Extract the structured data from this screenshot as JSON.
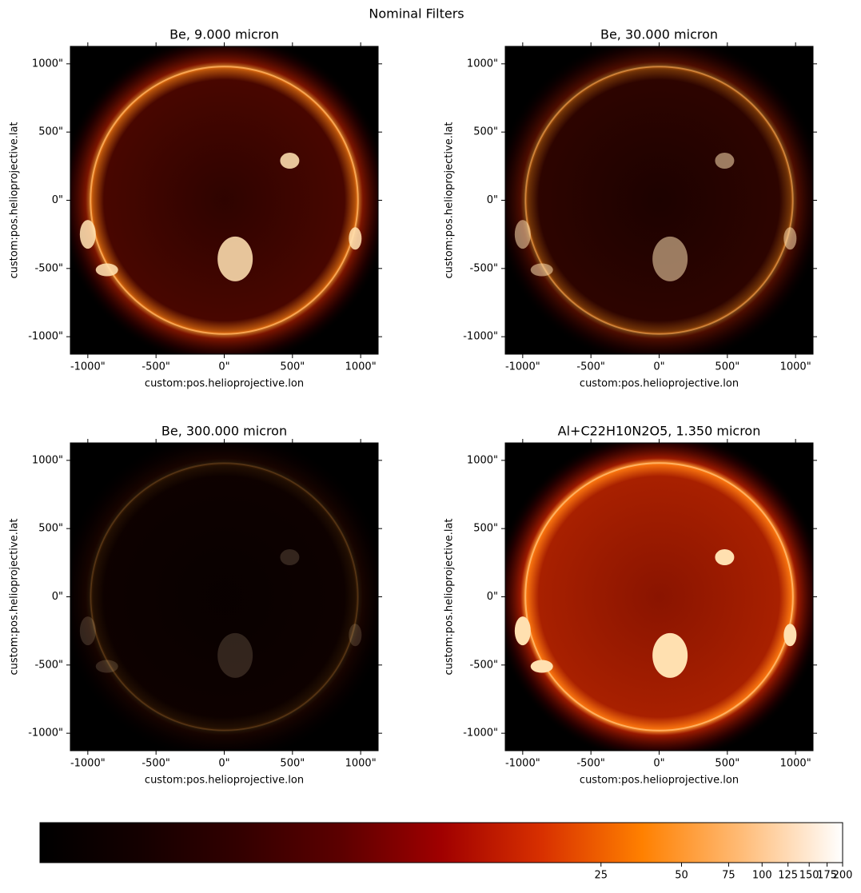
{
  "title": "Nominal Filters",
  "chart_data": [
    {
      "type": "image",
      "title": "Be, 9.000 micron",
      "xlabel": "custom:pos.helioprojective.lon",
      "ylabel": "custom:pos.helioprojective.lat",
      "xlim": [
        -1128,
        1128
      ],
      "ylim": [
        -1128,
        1128
      ],
      "xticks": [
        {
          "value": -1000,
          "label": "-1000\""
        },
        {
          "value": -500,
          "label": "-500\""
        },
        {
          "value": 0,
          "label": "0\""
        },
        {
          "value": 500,
          "label": "500\""
        },
        {
          "value": 1000,
          "label": "1000\""
        }
      ],
      "yticks": [
        {
          "value": -1000,
          "label": "-1000\""
        },
        {
          "value": -500,
          "label": "-500\""
        },
        {
          "value": 0,
          "label": "0\""
        },
        {
          "value": 500,
          "label": "500\""
        },
        {
          "value": 1000,
          "label": "1000\""
        }
      ]
    },
    {
      "type": "image",
      "title": "Be, 30.000 micron",
      "xlabel": "custom:pos.helioprojective.lon",
      "ylabel": "custom:pos.helioprojective.lat",
      "xlim": [
        -1128,
        1128
      ],
      "ylim": [
        -1128,
        1128
      ],
      "xticks": [
        {
          "value": -1000,
          "label": "-1000\""
        },
        {
          "value": -500,
          "label": "-500\""
        },
        {
          "value": 0,
          "label": "0\""
        },
        {
          "value": 500,
          "label": "500\""
        },
        {
          "value": 1000,
          "label": "1000\""
        }
      ],
      "yticks": [
        {
          "value": -1000,
          "label": "-1000\""
        },
        {
          "value": -500,
          "label": "-500\""
        },
        {
          "value": 0,
          "label": "0\""
        },
        {
          "value": 500,
          "label": "500\""
        },
        {
          "value": 1000,
          "label": "1000\""
        }
      ]
    },
    {
      "type": "image",
      "title": "Be, 300.000 micron",
      "xlabel": "custom:pos.helioprojective.lon",
      "ylabel": "custom:pos.helioprojective.lat",
      "xlim": [
        -1128,
        1128
      ],
      "ylim": [
        -1128,
        1128
      ],
      "xticks": [
        {
          "value": -1000,
          "label": "-1000\""
        },
        {
          "value": -500,
          "label": "-500\""
        },
        {
          "value": 0,
          "label": "0\""
        },
        {
          "value": 500,
          "label": "500\""
        },
        {
          "value": 1000,
          "label": "1000\""
        }
      ],
      "yticks": [
        {
          "value": -1000,
          "label": "-1000\""
        },
        {
          "value": -500,
          "label": "-500\""
        },
        {
          "value": 0,
          "label": "0\""
        },
        {
          "value": 500,
          "label": "500\""
        },
        {
          "value": 1000,
          "label": "1000\""
        }
      ]
    },
    {
      "type": "image",
      "title": "Al+C22H10N2O5, 1.350 micron",
      "xlabel": "custom:pos.helioprojective.lon",
      "ylabel": "custom:pos.helioprojective.lat",
      "xlim": [
        -1128,
        1128
      ],
      "ylim": [
        -1128,
        1128
      ],
      "xticks": [
        {
          "value": -1000,
          "label": "-1000\""
        },
        {
          "value": -500,
          "label": "-500\""
        },
        {
          "value": 0,
          "label": "0\""
        },
        {
          "value": 500,
          "label": "500\""
        },
        {
          "value": 1000,
          "label": "1000\""
        }
      ],
      "yticks": [
        {
          "value": -1000,
          "label": "-1000\""
        },
        {
          "value": -500,
          "label": "-500\""
        },
        {
          "value": 0,
          "label": "0\""
        },
        {
          "value": 500,
          "label": "500\""
        },
        {
          "value": 1000,
          "label": "1000\""
        }
      ]
    },
    {
      "type": "colorbar",
      "log": true,
      "xlim": [
        0.2,
        200
      ],
      "xticks": [
        25,
        50,
        75,
        100,
        125,
        150,
        175,
        200
      ],
      "colormap": [
        "#000000",
        "#140000",
        "#330000",
        "#5c0000",
        "#a00000",
        "#d83000",
        "#ff8000",
        "#ffbc78",
        "#ffffff"
      ]
    }
  ]
}
